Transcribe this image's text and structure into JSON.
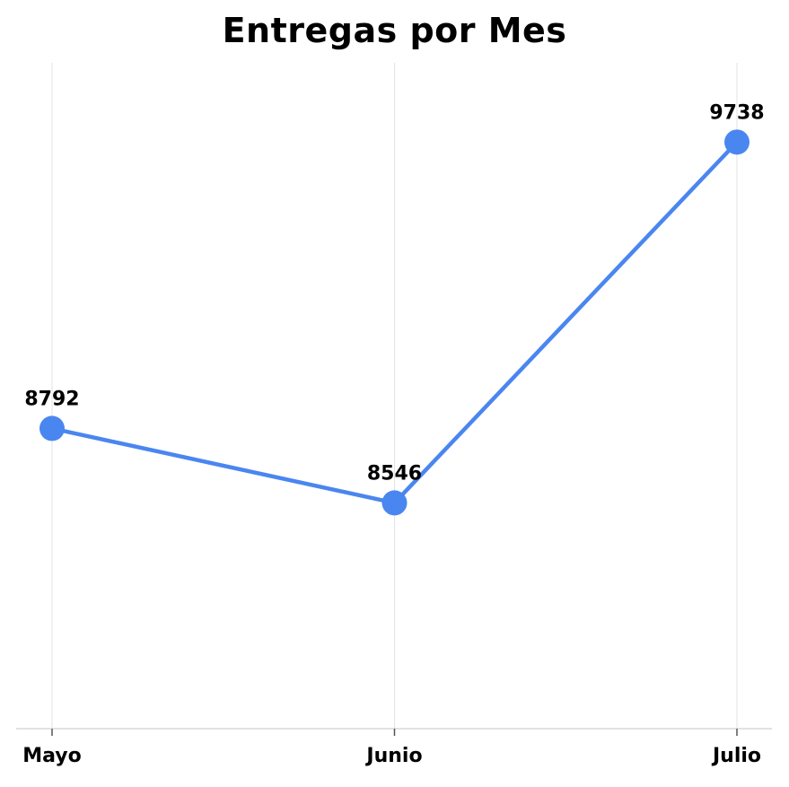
{
  "chart_data": {
    "type": "line",
    "title": "Entregas por Mes",
    "xlabel": "",
    "ylabel": "",
    "categories": [
      "Mayo",
      "Junio",
      "Julio"
    ],
    "series": [
      {
        "name": "Entregas",
        "values": [
          8792,
          8546,
          9738
        ]
      }
    ],
    "ylim": [
      7800,
      10000
    ],
    "grid": "vertical",
    "legend": "none",
    "colors": {
      "line": "#4a86f0",
      "grid": "#e3e3e3",
      "axis": "#d9d9d9"
    }
  }
}
